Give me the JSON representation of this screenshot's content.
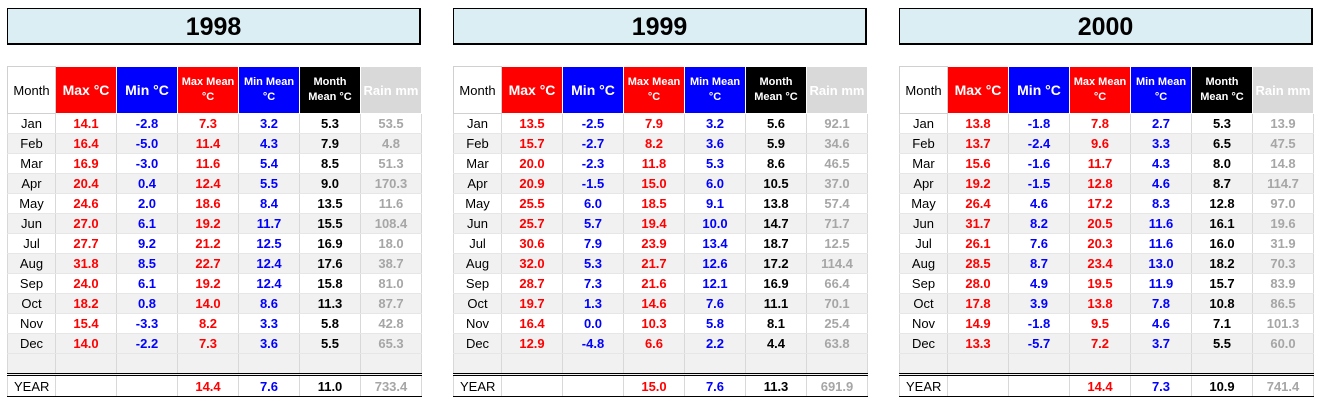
{
  "headers": {
    "month": "Month",
    "max": "Max °C",
    "min": "Min °C",
    "max_mean": "Max Mean °C",
    "min_mean": "Min Mean °C",
    "month_mean": "Month Mean °C",
    "rain": "Rain mm"
  },
  "year_label": "YEAR",
  "colors": {
    "max": "#ff0000",
    "min": "#0000ff",
    "month_mean": "#000000",
    "rain_header": "#d9d9d9",
    "title_bg": "#dbeef4"
  },
  "years": [
    {
      "title": "1998",
      "rows": [
        {
          "month": "Jan",
          "max": "14.1",
          "min": "-2.8",
          "max_mean": "7.3",
          "min_mean": "3.2",
          "month_mean": "5.3",
          "rain": "53.5"
        },
        {
          "month": "Feb",
          "max": "16.4",
          "min": "-5.0",
          "max_mean": "11.4",
          "min_mean": "4.3",
          "month_mean": "7.9",
          "rain": "4.8"
        },
        {
          "month": "Mar",
          "max": "16.9",
          "min": "-3.0",
          "max_mean": "11.6",
          "min_mean": "5.4",
          "month_mean": "8.5",
          "rain": "51.3"
        },
        {
          "month": "Apr",
          "max": "20.4",
          "min": "0.4",
          "max_mean": "12.4",
          "min_mean": "5.5",
          "month_mean": "9.0",
          "rain": "170.3"
        },
        {
          "month": "May",
          "max": "24.6",
          "min": "2.0",
          "max_mean": "18.6",
          "min_mean": "8.4",
          "month_mean": "13.5",
          "rain": "11.6"
        },
        {
          "month": "Jun",
          "max": "27.0",
          "min": "6.1",
          "max_mean": "19.2",
          "min_mean": "11.7",
          "month_mean": "15.5",
          "rain": "108.4"
        },
        {
          "month": "Jul",
          "max": "27.7",
          "min": "9.2",
          "max_mean": "21.2",
          "min_mean": "12.5",
          "month_mean": "16.9",
          "rain": "18.0"
        },
        {
          "month": "Aug",
          "max": "31.8",
          "min": "8.5",
          "max_mean": "22.7",
          "min_mean": "12.4",
          "month_mean": "17.6",
          "rain": "38.7"
        },
        {
          "month": "Sep",
          "max": "24.0",
          "min": "6.1",
          "max_mean": "19.2",
          "min_mean": "12.4",
          "month_mean": "15.8",
          "rain": "81.0"
        },
        {
          "month": "Oct",
          "max": "18.2",
          "min": "0.8",
          "max_mean": "14.0",
          "min_mean": "8.6",
          "month_mean": "11.3",
          "rain": "87.7"
        },
        {
          "month": "Nov",
          "max": "15.4",
          "min": "-3.3",
          "max_mean": "8.2",
          "min_mean": "3.3",
          "month_mean": "5.8",
          "rain": "42.8"
        },
        {
          "month": "Dec",
          "max": "14.0",
          "min": "-2.2",
          "max_mean": "7.3",
          "min_mean": "3.6",
          "month_mean": "5.5",
          "rain": "65.3"
        }
      ],
      "totals": {
        "max_mean": "14.4",
        "min_mean": "7.6",
        "month_mean": "11.0",
        "rain": "733.4"
      }
    },
    {
      "title": "1999",
      "rows": [
        {
          "month": "Jan",
          "max": "13.5",
          "min": "-2.5",
          "max_mean": "7.9",
          "min_mean": "3.2",
          "month_mean": "5.6",
          "rain": "92.1"
        },
        {
          "month": "Feb",
          "max": "15.7",
          "min": "-2.7",
          "max_mean": "8.2",
          "min_mean": "3.6",
          "month_mean": "5.9",
          "rain": "34.6"
        },
        {
          "month": "Mar",
          "max": "20.0",
          "min": "-2.3",
          "max_mean": "11.8",
          "min_mean": "5.3",
          "month_mean": "8.6",
          "rain": "46.5"
        },
        {
          "month": "Apr",
          "max": "20.9",
          "min": "-1.5",
          "max_mean": "15.0",
          "min_mean": "6.0",
          "month_mean": "10.5",
          "rain": "37.0"
        },
        {
          "month": "May",
          "max": "25.5",
          "min": "6.0",
          "max_mean": "18.5",
          "min_mean": "9.1",
          "month_mean": "13.8",
          "rain": "57.4"
        },
        {
          "month": "Jun",
          "max": "25.7",
          "min": "5.7",
          "max_mean": "19.4",
          "min_mean": "10.0",
          "month_mean": "14.7",
          "rain": "71.7"
        },
        {
          "month": "Jul",
          "max": "30.6",
          "min": "7.9",
          "max_mean": "23.9",
          "min_mean": "13.4",
          "month_mean": "18.7",
          "rain": "12.5"
        },
        {
          "month": "Aug",
          "max": "32.0",
          "min": "5.3",
          "max_mean": "21.7",
          "min_mean": "12.6",
          "month_mean": "17.2",
          "rain": "114.4"
        },
        {
          "month": "Sep",
          "max": "28.7",
          "min": "7.3",
          "max_mean": "21.6",
          "min_mean": "12.1",
          "month_mean": "16.9",
          "rain": "66.4"
        },
        {
          "month": "Oct",
          "max": "19.7",
          "min": "1.3",
          "max_mean": "14.6",
          "min_mean": "7.6",
          "month_mean": "11.1",
          "rain": "70.1"
        },
        {
          "month": "Nov",
          "max": "16.4",
          "min": "0.0",
          "max_mean": "10.3",
          "min_mean": "5.8",
          "month_mean": "8.1",
          "rain": "25.4"
        },
        {
          "month": "Dec",
          "max": "12.9",
          "min": "-4.8",
          "max_mean": "6.6",
          "min_mean": "2.2",
          "month_mean": "4.4",
          "rain": "63.8"
        }
      ],
      "totals": {
        "max_mean": "15.0",
        "min_mean": "7.6",
        "month_mean": "11.3",
        "rain": "691.9"
      }
    },
    {
      "title": "2000",
      "rows": [
        {
          "month": "Jan",
          "max": "13.8",
          "min": "-1.8",
          "max_mean": "7.8",
          "min_mean": "2.7",
          "month_mean": "5.3",
          "rain": "13.9"
        },
        {
          "month": "Feb",
          "max": "13.7",
          "min": "-2.4",
          "max_mean": "9.6",
          "min_mean": "3.3",
          "month_mean": "6.5",
          "rain": "47.5"
        },
        {
          "month": "Mar",
          "max": "15.6",
          "min": "-1.6",
          "max_mean": "11.7",
          "min_mean": "4.3",
          "month_mean": "8.0",
          "rain": "14.8"
        },
        {
          "month": "Apr",
          "max": "19.2",
          "min": "-1.5",
          "max_mean": "12.8",
          "min_mean": "4.6",
          "month_mean": "8.7",
          "rain": "114.7"
        },
        {
          "month": "May",
          "max": "26.4",
          "min": "4.6",
          "max_mean": "17.2",
          "min_mean": "8.3",
          "month_mean": "12.8",
          "rain": "97.0"
        },
        {
          "month": "Jun",
          "max": "31.7",
          "min": "8.2",
          "max_mean": "20.5",
          "min_mean": "11.6",
          "month_mean": "16.1",
          "rain": "19.6"
        },
        {
          "month": "Jul",
          "max": "26.1",
          "min": "7.6",
          "max_mean": "20.3",
          "min_mean": "11.6",
          "month_mean": "16.0",
          "rain": "31.9"
        },
        {
          "month": "Aug",
          "max": "28.5",
          "min": "8.7",
          "max_mean": "23.4",
          "min_mean": "13.0",
          "month_mean": "18.2",
          "rain": "70.3"
        },
        {
          "month": "Sep",
          "max": "28.0",
          "min": "4.9",
          "max_mean": "19.5",
          "min_mean": "11.9",
          "month_mean": "15.7",
          "rain": "83.9"
        },
        {
          "month": "Oct",
          "max": "17.8",
          "min": "3.9",
          "max_mean": "13.8",
          "min_mean": "7.8",
          "month_mean": "10.8",
          "rain": "86.5"
        },
        {
          "month": "Nov",
          "max": "14.9",
          "min": "-1.8",
          "max_mean": "9.5",
          "min_mean": "4.6",
          "month_mean": "7.1",
          "rain": "101.3"
        },
        {
          "month": "Dec",
          "max": "13.3",
          "min": "-5.7",
          "max_mean": "7.2",
          "min_mean": "3.7",
          "month_mean": "5.5",
          "rain": "60.0"
        }
      ],
      "totals": {
        "max_mean": "14.4",
        "min_mean": "7.3",
        "month_mean": "10.9",
        "rain": "741.4"
      }
    }
  ]
}
